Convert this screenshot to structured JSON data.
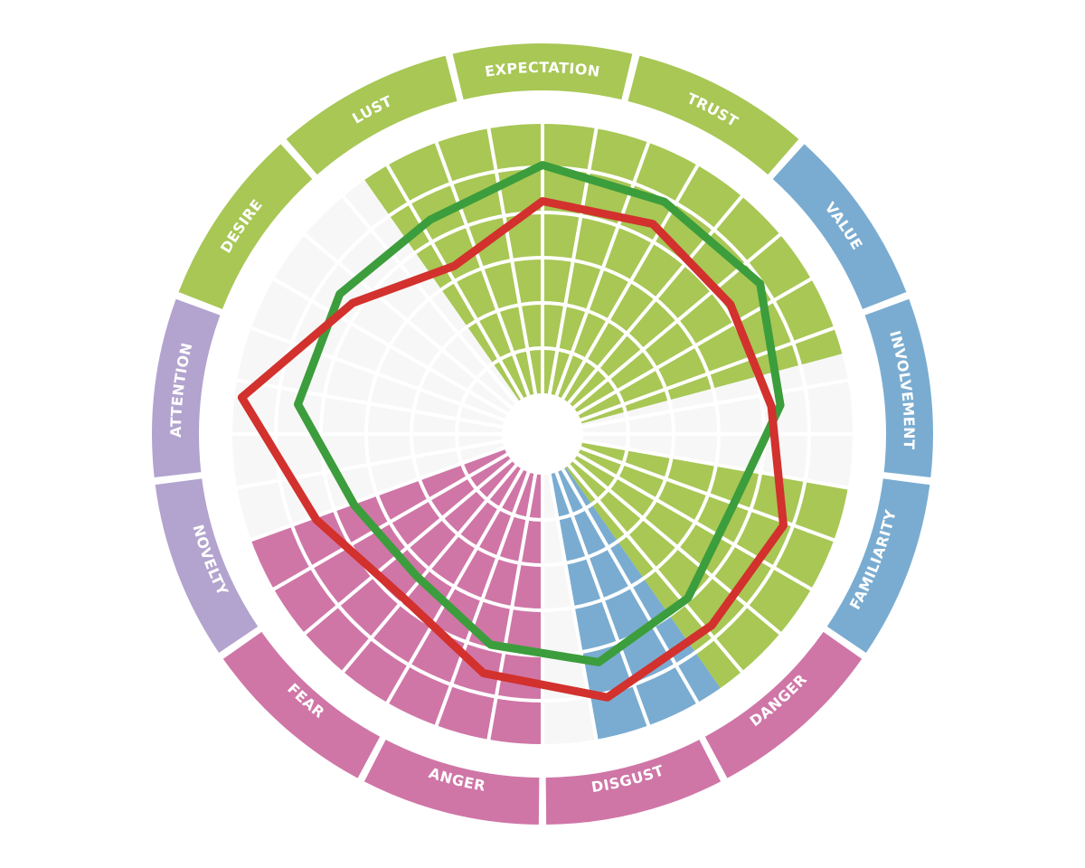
{
  "chart_data": {
    "type": "radar",
    "title": "",
    "levels": 6,
    "categories": [
      "EXPECTATION",
      "TRUST",
      "VALUE",
      "INVOLVEMENT",
      "FAMILIARITY",
      "DANGER",
      "DISGUST",
      "ANGER",
      "FEAR",
      "NOVELTY",
      "ATTENTION",
      "DESIRE",
      "LUST"
    ],
    "groups": [
      {
        "categories": [
          "DESIRE",
          "LUST",
          "EXPECTATION",
          "TRUST"
        ],
        "color": "#a8c755"
      },
      {
        "categories": [
          "VALUE",
          "INVOLVEMENT",
          "FAMILIARITY"
        ],
        "color": "#7aacd1"
      },
      {
        "categories": [
          "DANGER",
          "DISGUST",
          "ANGER",
          "FEAR"
        ],
        "color": "#cf76a7"
      },
      {
        "categories": [
          "NOVELTY",
          "ATTENTION"
        ],
        "color": "#b3a3cf"
      }
    ],
    "inner_fill": {
      "colors": {
        "green": "#a8c755",
        "blue": "#7aacd1",
        "pink": "#cf76a7"
      },
      "wedges": [
        {
          "color": "green",
          "start_deg": 10,
          "end_deg": 55,
          "value": 6
        },
        {
          "color": "blue",
          "start_deg": 55,
          "end_deg": 80,
          "value": 6
        },
        {
          "color": "pink",
          "start_deg": 90,
          "end_deg": 160,
          "value": 6
        },
        {
          "color": "green",
          "start_deg": 235,
          "end_deg": 345,
          "value": 6
        }
      ],
      "background": "#f7f7f7",
      "grid_line": "#ffffff"
    },
    "series": [
      {
        "color": "#3c9d3c",
        "values": [
          5.05,
          4.9,
          4.95,
          4.4,
          3.6,
          3.95,
          4.3,
          3.9,
          3.3,
          3.55,
          4.55,
          4.55,
          4.45
        ]
      },
      {
        "color": "#d2312d",
        "values": [
          4.25,
          4.35,
          4.15,
          4.2,
          4.8,
          4.75,
          5.1,
          4.55,
          3.85,
          4.45,
          5.8,
          4.2,
          3.3
        ]
      }
    ]
  }
}
